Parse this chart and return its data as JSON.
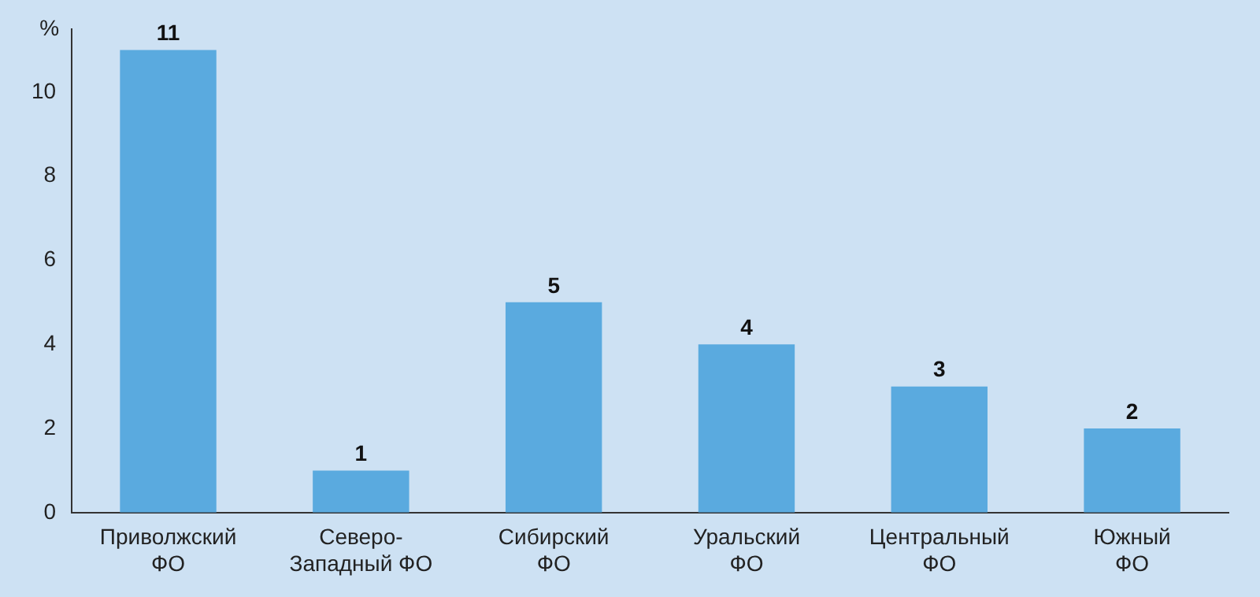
{
  "chart_data": {
    "type": "bar",
    "ylabel": "%",
    "categories": [
      "Приволжский\nФО",
      "Северо-\nЗападный ФО",
      "Сибирский\nФО",
      "Уральский\nФО",
      "Центральный\nФО",
      "Южный\nФО"
    ],
    "values": [
      11,
      1,
      5,
      4,
      3,
      2
    ],
    "color": "#5aaadf",
    "ylim": [
      0,
      11.5
    ],
    "yticks": [
      0,
      2,
      4,
      6,
      8,
      10
    ],
    "grid": false,
    "data_labels": true,
    "legend": false
  }
}
